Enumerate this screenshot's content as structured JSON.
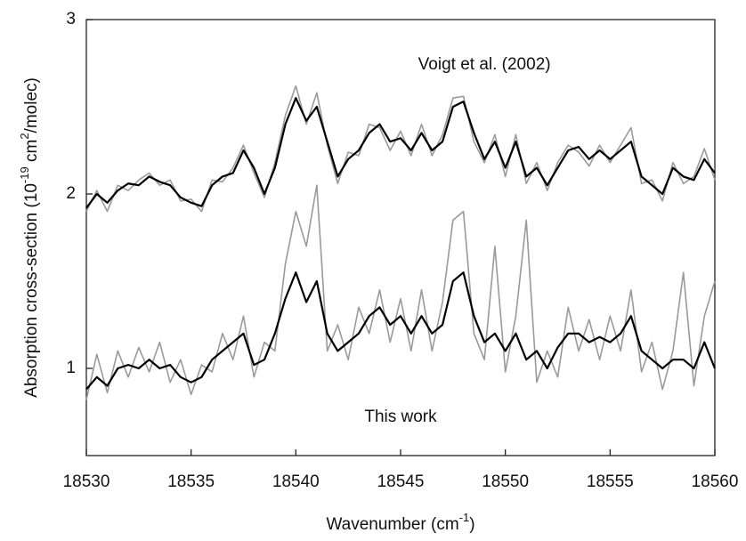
{
  "chart_data": {
    "type": "line",
    "xlabel": [
      "Wavenumber  (cm",
      "-1",
      ")"
    ],
    "ylabel": [
      "Absorption cross-section  (10",
      "-19",
      " cm",
      "2",
      "/molec)"
    ],
    "annotations": [
      {
        "text": "Voigt et al. (2002)",
        "x": 18549,
        "y": 2.74
      },
      {
        "text": "This work",
        "x": 18545,
        "y": 0.72
      }
    ],
    "x": [
      18530,
      18530.5,
      18531,
      18531.5,
      18532,
      18532.5,
      18533,
      18533.5,
      18534,
      18534.5,
      18535,
      18535.5,
      18536,
      18536.5,
      18537,
      18537.5,
      18538,
      18538.5,
      18539,
      18539.5,
      18540,
      18540.5,
      18541,
      18541.5,
      18542,
      18542.5,
      18543,
      18543.5,
      18544,
      18544.5,
      18545,
      18545.5,
      18546,
      18546.5,
      18547,
      18547.5,
      18548,
      18548.5,
      18549,
      18549.5,
      18550,
      18550.5,
      18551,
      18551.5,
      18552,
      18552.5,
      18553,
      18553.5,
      18554,
      18554.5,
      18555,
      18555.5,
      18556,
      18556.5,
      18557,
      18557.5,
      18558,
      18558.5,
      18559,
      18559.5,
      18560
    ],
    "series": [
      {
        "color": "#9a9a9a",
        "values": [
          1.9,
          2.02,
          1.9,
          2.05,
          2.02,
          2.08,
          2.12,
          2.05,
          2.08,
          1.96,
          1.97,
          1.9,
          2.08,
          2.07,
          2.15,
          2.28,
          2.12,
          1.98,
          2.18,
          2.45,
          2.62,
          2.4,
          2.58,
          2.28,
          2.06,
          2.24,
          2.22,
          2.4,
          2.38,
          2.25,
          2.36,
          2.22,
          2.4,
          2.22,
          2.34,
          2.55,
          2.56,
          2.3,
          2.18,
          2.34,
          2.1,
          2.34,
          2.06,
          2.18,
          2.02,
          2.18,
          2.28,
          2.24,
          2.16,
          2.28,
          2.18,
          2.28,
          2.38,
          2.06,
          2.08,
          1.96,
          2.18,
          2.06,
          2.1,
          2.26,
          2.08
        ]
      },
      {
        "color": "#000000",
        "values": [
          1.92,
          2.0,
          1.95,
          2.02,
          2.06,
          2.05,
          2.1,
          2.07,
          2.05,
          1.98,
          1.95,
          1.93,
          2.05,
          2.1,
          2.12,
          2.25,
          2.15,
          2.0,
          2.15,
          2.4,
          2.55,
          2.42,
          2.5,
          2.3,
          2.1,
          2.2,
          2.25,
          2.35,
          2.4,
          2.3,
          2.32,
          2.25,
          2.35,
          2.25,
          2.3,
          2.5,
          2.53,
          2.35,
          2.2,
          2.3,
          2.15,
          2.3,
          2.1,
          2.15,
          2.05,
          2.15,
          2.25,
          2.27,
          2.2,
          2.25,
          2.2,
          2.25,
          2.3,
          2.1,
          2.05,
          2.0,
          2.15,
          2.1,
          2.08,
          2.2,
          2.12
        ]
      },
      {
        "color": "#9a9a9a",
        "values": [
          0.82,
          1.08,
          0.86,
          1.1,
          0.95,
          1.12,
          0.98,
          1.15,
          0.92,
          1.05,
          0.85,
          1.02,
          0.98,
          1.2,
          1.05,
          1.3,
          0.95,
          1.15,
          1.1,
          1.6,
          1.9,
          1.7,
          2.05,
          1.1,
          1.25,
          1.05,
          1.35,
          1.2,
          1.45,
          1.15,
          1.4,
          1.1,
          1.45,
          1.1,
          1.38,
          1.85,
          1.9,
          1.2,
          1.05,
          1.7,
          0.98,
          1.3,
          1.85,
          0.92,
          1.1,
          0.95,
          1.35,
          1.1,
          1.28,
          1.05,
          1.3,
          1.1,
          1.45,
          0.98,
          1.15,
          0.88,
          1.1,
          1.55,
          0.9,
          1.3,
          1.5
        ]
      },
      {
        "color": "#000000",
        "values": [
          0.88,
          0.95,
          0.9,
          1.0,
          1.02,
          1.0,
          1.05,
          1.0,
          1.02,
          0.95,
          0.92,
          0.95,
          1.05,
          1.1,
          1.15,
          1.2,
          1.02,
          1.05,
          1.2,
          1.4,
          1.55,
          1.38,
          1.5,
          1.2,
          1.1,
          1.15,
          1.2,
          1.3,
          1.35,
          1.25,
          1.3,
          1.2,
          1.3,
          1.2,
          1.25,
          1.5,
          1.55,
          1.3,
          1.15,
          1.2,
          1.1,
          1.2,
          1.05,
          1.1,
          1.0,
          1.12,
          1.2,
          1.2,
          1.15,
          1.18,
          1.15,
          1.2,
          1.3,
          1.1,
          1.05,
          1.0,
          1.05,
          1.05,
          1.0,
          1.15,
          1.0
        ]
      }
    ],
    "xlim": [
      18530,
      18560
    ],
    "xticks": [
      18530,
      18535,
      18540,
      18545,
      18550,
      18555,
      18560
    ],
    "ylim": [
      0.5,
      3
    ],
    "yticks": [
      1,
      2,
      3
    ],
    "grid": false
  }
}
